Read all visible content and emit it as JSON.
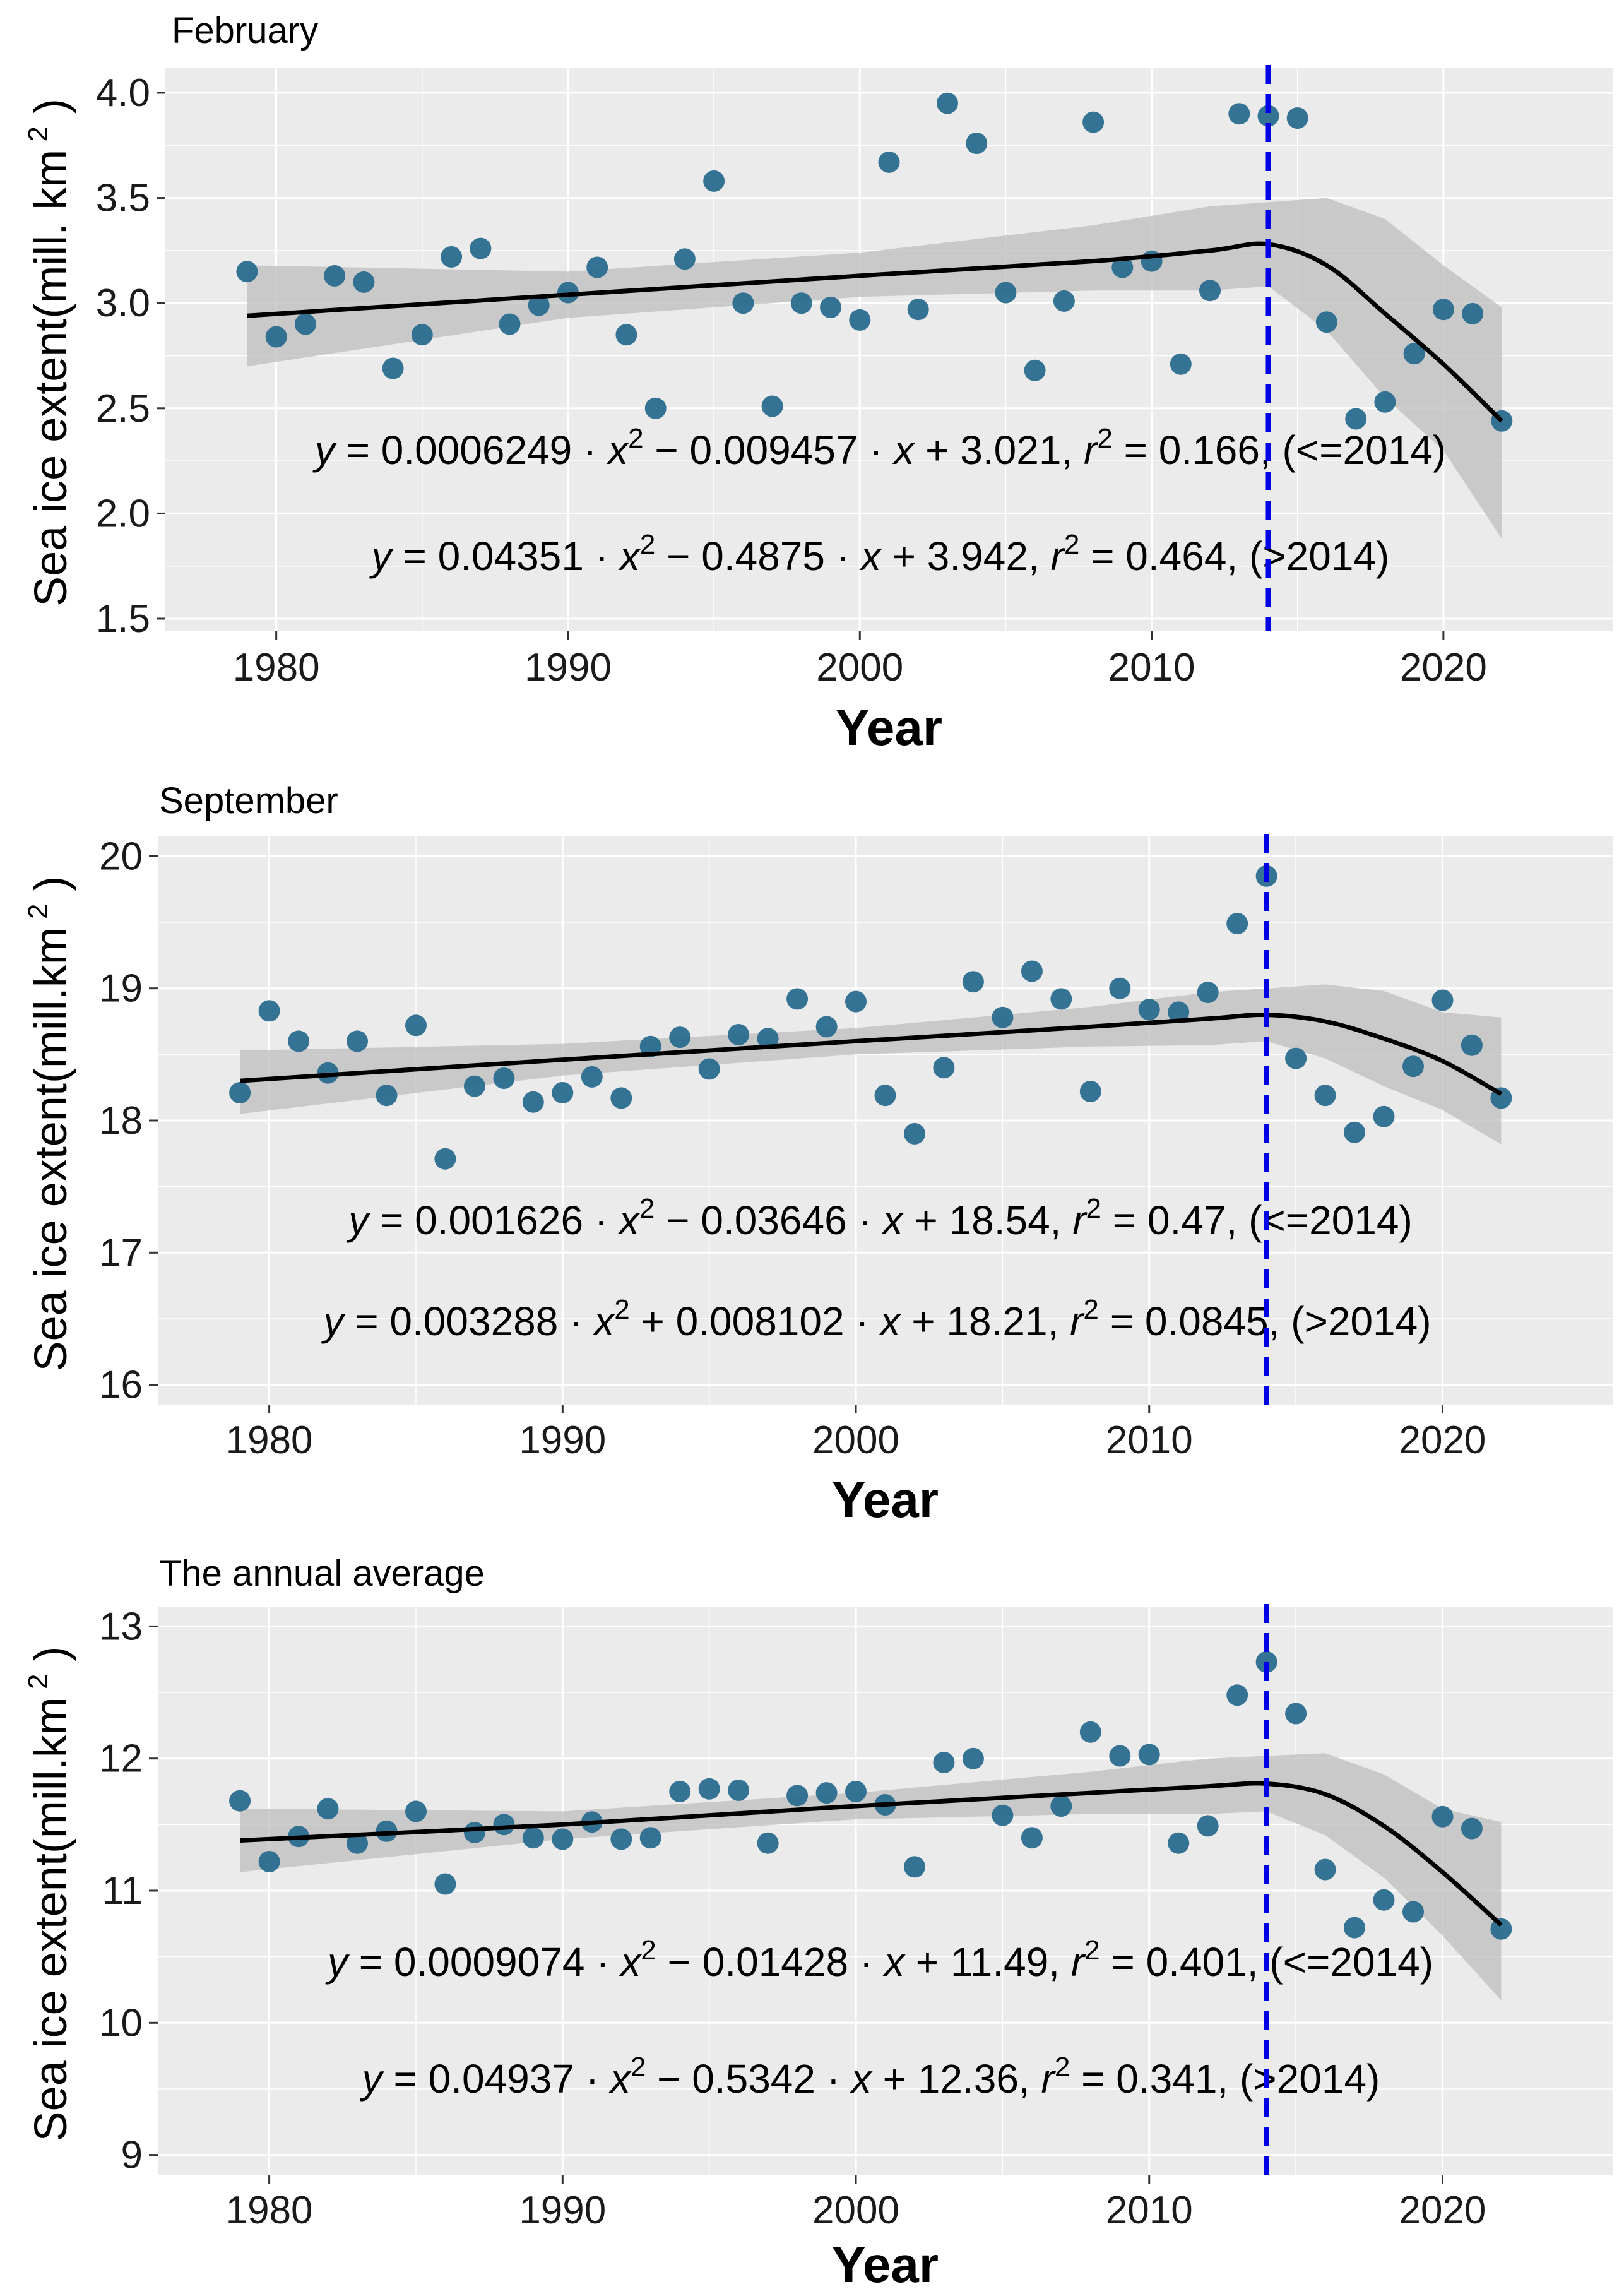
{
  "chart_data": [
    {
      "type": "scatter",
      "title": "February",
      "xlabel": "Year",
      "ylabel": "Sea ice extent(mill. km",
      "ylabel_sup": "2",
      "ylabel_close": ")",
      "xlim": [
        1976.2,
        2025.8
      ],
      "ylim": [
        1.44,
        4.12
      ],
      "xticks": [
        1980,
        1990,
        2000,
        2010,
        2020
      ],
      "yticks": [
        1.5,
        2.0,
        2.5,
        3.0,
        3.5,
        4.0
      ],
      "ytick_labels": [
        "1.5",
        "2.0",
        "2.5",
        "3.0",
        "3.5",
        "4.0"
      ],
      "x": [
        1979,
        1980,
        1981,
        1982,
        1983,
        1984,
        1985,
        1986,
        1987,
        1988,
        1989,
        1990,
        1991,
        1992,
        1993,
        1994,
        1995,
        1996,
        1997,
        1998,
        1999,
        2000,
        2001,
        2002,
        2003,
        2004,
        2005,
        2006,
        2007,
        2008,
        2009,
        2010,
        2011,
        2012,
        2013,
        2014,
        2015,
        2016,
        2017,
        2018,
        2019,
        2020,
        2021,
        2022
      ],
      "values": [
        3.15,
        2.84,
        2.9,
        3.13,
        3.1,
        2.69,
        2.85,
        3.22,
        3.26,
        2.9,
        2.99,
        3.05,
        3.17,
        2.85,
        2.5,
        3.21,
        3.58,
        3.0,
        2.51,
        3.0,
        2.98,
        2.92,
        3.67,
        2.97,
        3.95,
        3.76,
        3.05,
        2.68,
        3.01,
        3.86,
        3.17,
        3.2,
        2.71,
        3.06,
        3.9,
        3.89,
        3.88,
        2.91,
        2.45,
        2.53,
        2.76,
        2.97,
        2.95,
        2.44
      ],
      "trend": {
        "x": [
          1979,
          1990,
          2000,
          2008,
          2012,
          2014,
          2016,
          2018,
          2020,
          2022
        ],
        "y": [
          2.94,
          3.04,
          3.13,
          3.2,
          3.25,
          3.28,
          3.18,
          2.95,
          2.71,
          2.44
        ]
      },
      "ribbon_upper": [
        3.18,
        3.15,
        3.24,
        3.37,
        3.46,
        3.48,
        3.5,
        3.4,
        3.18,
        2.98
      ],
      "ribbon_lower": [
        2.7,
        2.93,
        3.03,
        3.06,
        3.06,
        3.08,
        2.87,
        2.55,
        2.3,
        1.88
      ],
      "breakpoint_year": 2014,
      "equations": [
        {
          "y": "y",
          "c2": " = 0.0006249 · ",
          "x2": "x",
          "p2": "2",
          "c1": " − 0.009457 · ",
          "x1": "x",
          "c0": " + 3.021,  ",
          "r": "r",
          "rp": "2",
          "tail": " = 0.166, (<=2014)"
        },
        {
          "y": "y",
          "c2": " = 0.04351 · ",
          "x2": "x",
          "p2": "2",
          "c1": " − 0.4875 · ",
          "x1": "x",
          "c0": " + 3.942,  ",
          "r": "r",
          "rp": "2",
          "tail": " = 0.464, (>2014)"
        }
      ],
      "colors": {
        "points": "#2b6d8f",
        "trend": "#000000",
        "ribbon": "#bdbdbd",
        "vline": "#0000e6",
        "panel": "#ebebeb",
        "grid": "#ffffff"
      }
    },
    {
      "type": "scatter",
      "title": "September",
      "xlabel": "Year",
      "ylabel": "Sea ice extent(mill.km",
      "ylabel_sup": "2",
      "ylabel_close": ")",
      "xlim": [
        1976.2,
        2025.8
      ],
      "ylim": [
        15.85,
        20.15
      ],
      "xticks": [
        1980,
        1990,
        2000,
        2010,
        2020
      ],
      "yticks": [
        16,
        17,
        18,
        19,
        20
      ],
      "ytick_labels": [
        "16",
        "17",
        "18",
        "19",
        "20"
      ],
      "x": [
        1979,
        1980,
        1981,
        1982,
        1983,
        1984,
        1985,
        1986,
        1987,
        1988,
        1989,
        1990,
        1991,
        1992,
        1993,
        1994,
        1995,
        1996,
        1997,
        1998,
        1999,
        2000,
        2001,
        2002,
        2003,
        2004,
        2005,
        2006,
        2007,
        2008,
        2009,
        2010,
        2011,
        2012,
        2013,
        2014,
        2015,
        2016,
        2017,
        2018,
        2019,
        2020,
        2021,
        2022
      ],
      "values": [
        18.21,
        18.83,
        18.6,
        18.36,
        18.6,
        18.19,
        18.72,
        17.71,
        18.26,
        18.32,
        18.14,
        18.21,
        18.33,
        18.17,
        18.56,
        18.63,
        18.39,
        18.65,
        18.62,
        18.92,
        18.71,
        18.9,
        18.19,
        17.9,
        18.4,
        19.05,
        18.78,
        19.13,
        18.92,
        18.22,
        19.0,
        18.84,
        18.82,
        18.97,
        19.49,
        19.85,
        18.47,
        18.19,
        17.91,
        18.03,
        18.41,
        18.91,
        18.57,
        18.17
      ],
      "trend": {
        "x": [
          1979,
          1990,
          2000,
          2008,
          2012,
          2014,
          2016,
          2018,
          2020,
          2022
        ],
        "y": [
          18.3,
          18.46,
          18.6,
          18.71,
          18.77,
          18.8,
          18.75,
          18.62,
          18.45,
          18.2
        ]
      },
      "ribbon_upper": [
        18.53,
        18.58,
        18.7,
        18.86,
        18.97,
        19.0,
        19.03,
        18.98,
        18.82,
        18.78
      ],
      "ribbon_lower": [
        18.05,
        18.34,
        18.5,
        18.56,
        18.57,
        18.6,
        18.47,
        18.26,
        18.08,
        17.82
      ],
      "breakpoint_year": 2014,
      "equations": [
        {
          "y": "y",
          "c2": " = 0.001626 · ",
          "x2": "x",
          "p2": "2",
          "c1": " − 0.03646 · ",
          "x1": "x",
          "c0": " + 18.54,  ",
          "r": "r",
          "rp": "2",
          "tail": " = 0.47, (<=2014)"
        },
        {
          "y": "y",
          "c2": " = 0.003288 · ",
          "x2": "x",
          "p2": "2",
          "c1": " + 0.008102 · ",
          "x1": "x",
          "c0": " + 18.21,  ",
          "r": "r",
          "rp": "2",
          "tail": " = 0.0845, (>2014)"
        }
      ],
      "colors": {
        "points": "#2b6d8f",
        "trend": "#000000",
        "ribbon": "#bdbdbd",
        "vline": "#0000e6",
        "panel": "#ebebeb",
        "grid": "#ffffff"
      }
    },
    {
      "type": "scatter",
      "title": "The annual average",
      "xlabel": "Year",
      "ylabel": "Sea ice extent(mill.km",
      "ylabel_sup": "2",
      "ylabel_close": ")",
      "xlim": [
        1976.2,
        2025.8
      ],
      "ylim": [
        8.85,
        13.15
      ],
      "xticks": [
        1980,
        1990,
        2000,
        2010,
        2020
      ],
      "yticks": [
        9,
        10,
        11,
        12,
        13
      ],
      "ytick_labels": [
        "9",
        "10",
        "11",
        "12",
        "13"
      ],
      "x": [
        1979,
        1980,
        1981,
        1982,
        1983,
        1984,
        1985,
        1986,
        1987,
        1988,
        1989,
        1990,
        1991,
        1992,
        1993,
        1994,
        1995,
        1996,
        1997,
        1998,
        1999,
        2000,
        2001,
        2002,
        2003,
        2004,
        2005,
        2006,
        2007,
        2008,
        2009,
        2010,
        2011,
        2012,
        2013,
        2014,
        2015,
        2016,
        2017,
        2018,
        2019,
        2020,
        2021,
        2022
      ],
      "values": [
        11.68,
        11.22,
        11.41,
        11.62,
        11.36,
        11.45,
        11.6,
        11.05,
        11.44,
        11.5,
        11.4,
        11.39,
        11.52,
        11.39,
        11.4,
        11.75,
        11.77,
        11.76,
        11.36,
        11.72,
        11.74,
        11.75,
        11.65,
        11.18,
        11.97,
        12.0,
        11.57,
        11.4,
        11.64,
        12.2,
        12.02,
        12.03,
        11.36,
        11.49,
        12.48,
        12.73,
        12.34,
        11.16,
        10.72,
        10.93,
        10.84,
        11.56,
        11.47,
        10.71
      ],
      "trend": {
        "x": [
          1979,
          1990,
          2000,
          2008,
          2012,
          2014,
          2016,
          2018,
          2020,
          2022
        ],
        "y": [
          11.38,
          11.5,
          11.64,
          11.74,
          11.79,
          11.81,
          11.73,
          11.49,
          11.14,
          10.74
        ]
      },
      "ribbon_upper": [
        11.62,
        11.6,
        11.74,
        11.9,
        12.0,
        12.02,
        12.04,
        11.88,
        11.62,
        11.52
      ],
      "ribbon_lower": [
        11.14,
        11.39,
        11.54,
        11.58,
        11.58,
        11.6,
        11.42,
        11.1,
        10.66,
        10.17
      ],
      "breakpoint_year": 2014,
      "equations": [
        {
          "y": "y",
          "c2": " = 0.0009074 · ",
          "x2": "x",
          "p2": "2",
          "c1": " − 0.01428 · ",
          "x1": "x",
          "c0": " + 11.49,  ",
          "r": "r",
          "rp": "2",
          "tail": " = 0.401, (<=2014)"
        },
        {
          "y": "y",
          "c2": " = 0.04937 · ",
          "x2": "x",
          "p2": "2",
          "c1": " − 0.5342 · ",
          "x1": "x",
          "c0": " + 12.36,  ",
          "r": "r",
          "rp": "2",
          "tail": " = 0.341, (>2014)"
        }
      ],
      "colors": {
        "points": "#2b6d8f",
        "trend": "#000000",
        "ribbon": "#bdbdbd",
        "vline": "#0000e6",
        "panel": "#ebebeb",
        "grid": "#ffffff"
      }
    }
  ]
}
